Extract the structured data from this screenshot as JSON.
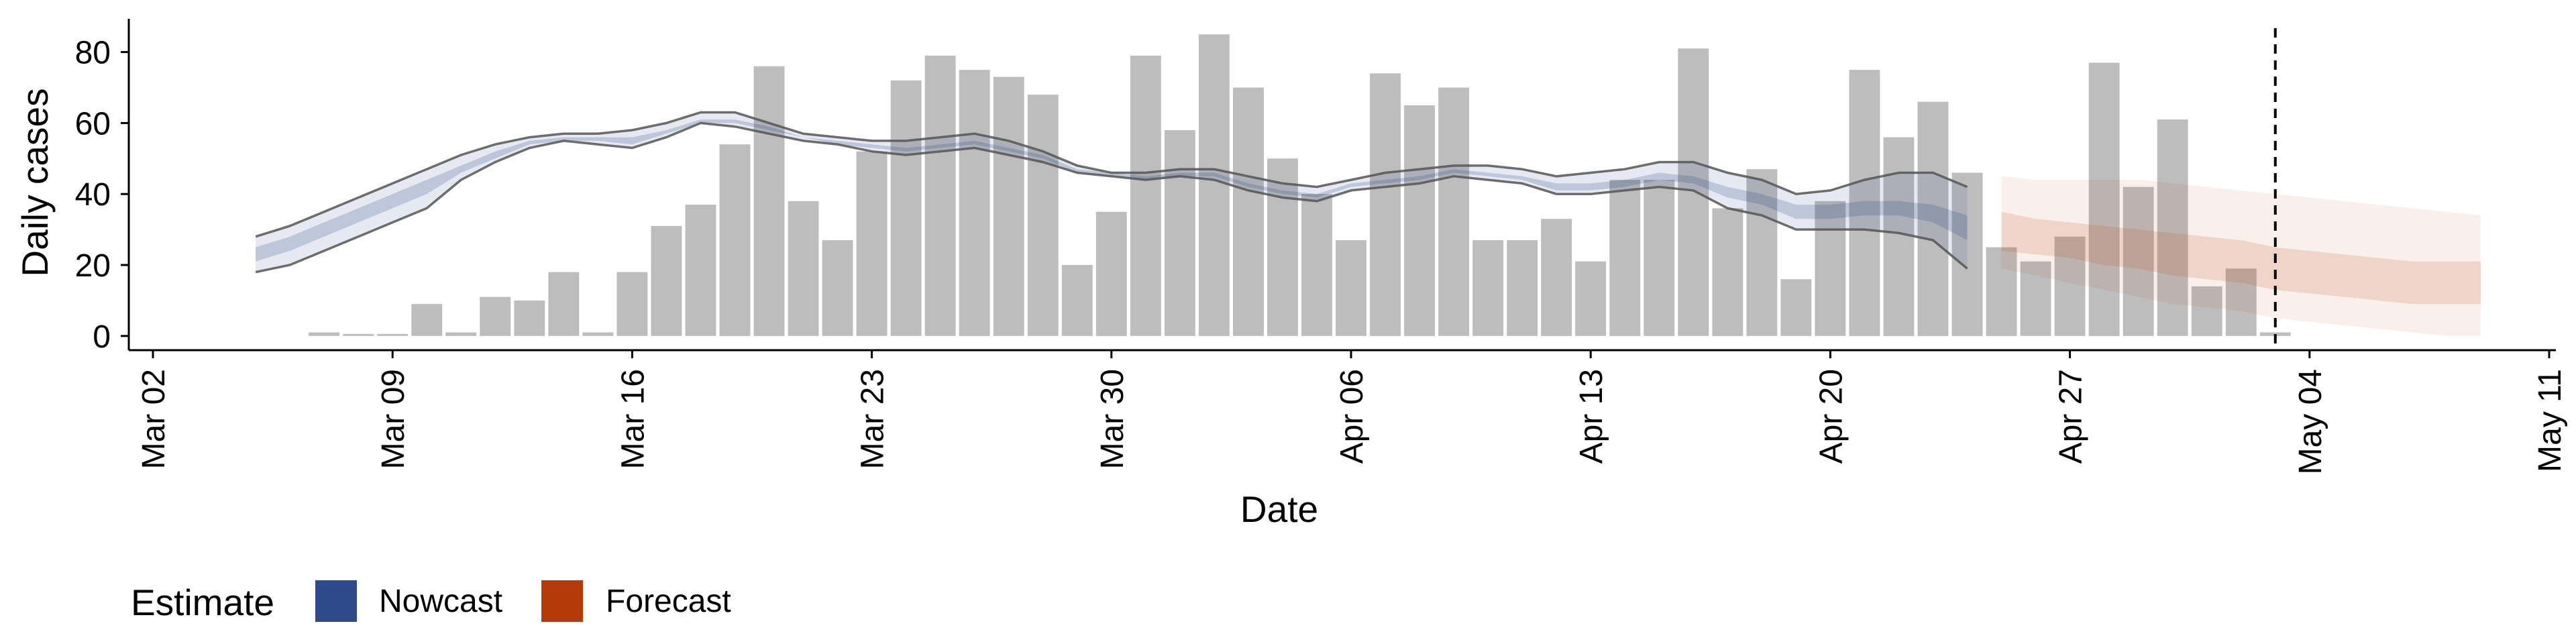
{
  "chart_data": {
    "type": "bar",
    "xlabel": "Date",
    "ylabel": "Daily cases",
    "ylim": [
      -4,
      89
    ],
    "x_ticks": [
      "Mar 02",
      "Mar 09",
      "Mar 16",
      "Mar 23",
      "Mar 30",
      "Apr 06",
      "Apr 13",
      "Apr 20",
      "Apr 27",
      "May 04",
      "May 11"
    ],
    "y_ticks": [
      0,
      20,
      40,
      60,
      80
    ],
    "x_start": "2020-03-02",
    "x_end": "2020-05-11",
    "reference_line": "2020-05-03",
    "bars": {
      "start": "2020-03-07",
      "values": [
        1,
        0,
        0,
        9,
        1,
        11,
        10,
        18,
        1,
        18,
        31,
        37,
        54,
        76,
        38,
        27,
        52,
        72,
        79,
        75,
        73,
        68,
        20,
        35,
        79,
        58,
        85,
        70,
        50,
        40,
        27,
        74,
        65,
        70,
        27,
        27,
        33,
        21,
        44,
        44,
        81,
        36,
        47,
        16,
        38,
        75,
        56,
        66,
        46,
        25,
        21,
        28,
        77,
        42,
        61,
        14,
        19,
        1
      ]
    },
    "nowcast": {
      "start": "2020-03-05",
      "upper": [
        28,
        31,
        35,
        39,
        43,
        47,
        51,
        54,
        56,
        57,
        57,
        58,
        60,
        63,
        63,
        60,
        57,
        56,
        55,
        55,
        56,
        57,
        55,
        52,
        48,
        46,
        46,
        47,
        47,
        45,
        43,
        42,
        44,
        46,
        47,
        48,
        48,
        47,
        45,
        46,
        47,
        49,
        49,
        46,
        44,
        40,
        41,
        44,
        46,
        46,
        42
      ],
      "lower": [
        18,
        20,
        24,
        28,
        32,
        36,
        44,
        49,
        53,
        55,
        54,
        53,
        56,
        60,
        59,
        57,
        55,
        54,
        52,
        51,
        52,
        53,
        51,
        49,
        46,
        45,
        44,
        45,
        44,
        41,
        39,
        38,
        41,
        42,
        43,
        45,
        44,
        43,
        40,
        40,
        41,
        42,
        41,
        36,
        34,
        30,
        30,
        30,
        29,
        27,
        19
      ],
      "inner_upper": [
        25,
        28,
        32,
        36,
        40,
        44,
        48,
        52,
        55,
        56,
        56,
        56,
        58,
        61,
        61,
        59,
        56,
        55,
        54,
        53,
        54,
        55,
        53,
        51,
        47,
        46,
        45,
        46,
        46,
        43,
        41,
        40,
        43,
        44,
        45,
        47,
        46,
        45,
        43,
        43,
        44,
        46,
        45,
        42,
        40,
        37,
        37,
        38,
        38,
        37,
        34
      ],
      "inner_lower": [
        21,
        24,
        28,
        32,
        36,
        40,
        46,
        50,
        54,
        55,
        55,
        54,
        57,
        60,
        60,
        58,
        56,
        54,
        53,
        52,
        53,
        54,
        52,
        50,
        46,
        45,
        44,
        45,
        45,
        42,
        40,
        39,
        42,
        43,
        44,
        46,
        45,
        44,
        41,
        41,
        42,
        44,
        43,
        39,
        37,
        33,
        33,
        34,
        34,
        32,
        27
      ]
    },
    "forecast": {
      "start": "2020-04-25",
      "upper": [
        45,
        44,
        44,
        44,
        44,
        43,
        42,
        41,
        40,
        39,
        38,
        37,
        36,
        35,
        34
      ],
      "lower": [
        19,
        17,
        15,
        13,
        11,
        9,
        8,
        7,
        5,
        4,
        3,
        2,
        1,
        0,
        0
      ],
      "inner_upper": [
        35,
        33,
        32,
        31,
        30,
        29,
        28,
        27,
        25,
        24,
        23,
        22,
        21,
        21,
        21
      ],
      "inner_lower": [
        24,
        23,
        22,
        20,
        19,
        17,
        16,
        15,
        13,
        12,
        11,
        10,
        9,
        9,
        9
      ]
    },
    "legend": {
      "title": "Estimate",
      "items": [
        {
          "name": "Nowcast",
          "color": "#2f4a8a"
        },
        {
          "name": "Forecast",
          "color": "#b53a09"
        }
      ],
      "position": "bottom-left"
    },
    "colors": {
      "bars": "#bdbdbd",
      "nowcast": "#2f4a8a",
      "forecast": "#b53a09",
      "outline": "#555555"
    },
    "grid": false
  }
}
